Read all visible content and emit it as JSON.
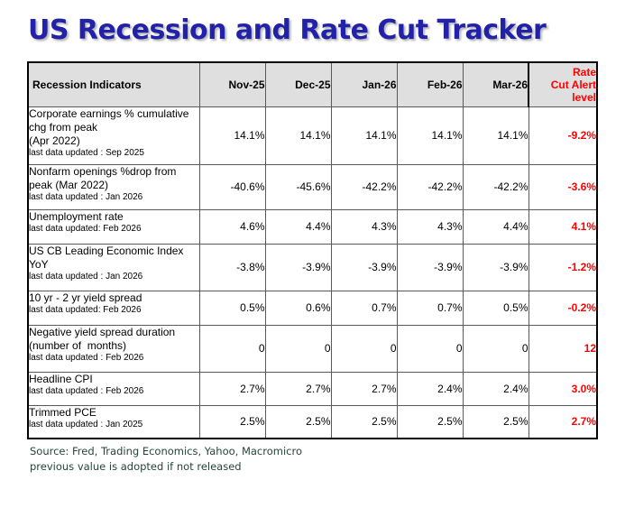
{
  "page": {
    "title": "US Recession and Rate Cut Tracker"
  },
  "colors": {
    "title_blue": "#2222A8",
    "alert_red": "#FF0000",
    "header_bg": "#DFDFDF",
    "footer_green": "#25453A"
  },
  "table": {
    "columns": [
      "Recession Indicators",
      "Nov-25",
      "Dec-25",
      "Jan-26",
      "Feb-26",
      "Mar-26",
      "Rate\nCut Alert\nlevel"
    ],
    "rows": [
      {
        "label": "Corporate earnings % cumulative\nchg from peak\n(Apr 2022)",
        "updated": "last data updated : Sep 2025",
        "values": [
          "14.1%",
          "14.1%",
          "14.1%",
          "14.1%",
          "14.1%"
        ],
        "alert": "-9.2%"
      },
      {
        "label": "Nonfarm openings %drop from\npeak (Mar 2022)",
        "updated": "last data updated : Jan 2026",
        "values": [
          "-40.6%",
          "-45.6%",
          "-42.2%",
          "-42.2%",
          "-42.2%"
        ],
        "alert": "-3.6%"
      },
      {
        "label": "Unemployment rate",
        "updated": "last data updated: Feb 2026",
        "values": [
          "4.6%",
          "4.4%",
          "4.3%",
          "4.3%",
          "4.4%"
        ],
        "alert": "4.1%"
      },
      {
        "label": "US CB Leading Economic Index\nYoY",
        "updated": "last data updated : Jan 2026",
        "values": [
          "-3.8%",
          "-3.9%",
          "-3.9%",
          "-3.9%",
          "-3.9%"
        ],
        "alert": "-1.2%"
      },
      {
        "label": "10 yr - 2 yr yield spread",
        "updated": "last data updated: Feb 2026",
        "values": [
          "0.5%",
          "0.6%",
          "0.7%",
          "0.7%",
          "0.5%"
        ],
        "alert": "-0.2%"
      },
      {
        "label": "Negative yield spread duration\n(number of  months)",
        "updated": "last data updated : Feb 2026",
        "values": [
          "0",
          "0",
          "0",
          "0",
          "0"
        ],
        "alert": "12"
      },
      {
        "label": "Headline CPI",
        "updated": "last data updated : Feb 2026",
        "values": [
          "2.7%",
          "2.7%",
          "2.7%",
          "2.4%",
          "2.4%"
        ],
        "alert": "3.0%"
      },
      {
        "label": "Trimmed PCE",
        "updated": "last data updated : Jan 2025",
        "values": [
          "2.5%",
          "2.5%",
          "2.5%",
          "2.5%",
          "2.5%"
        ],
        "alert": "2.7%"
      }
    ]
  },
  "footer": {
    "source": "Source: Fred, Trading Economics, Yahoo, Macromicro",
    "note": "previous value is adopted if not released"
  }
}
